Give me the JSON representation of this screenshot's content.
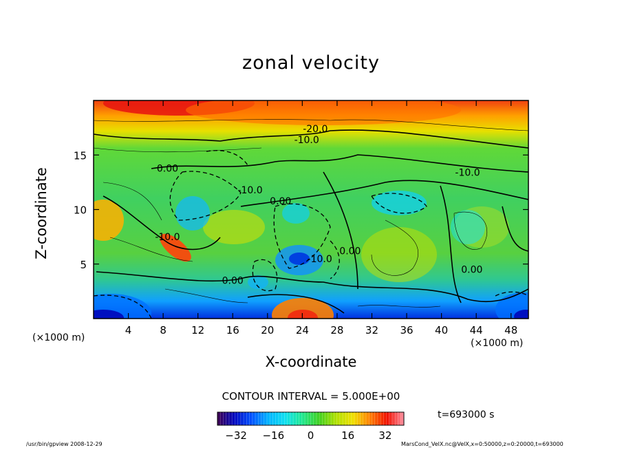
{
  "chart_data": {
    "type": "heatmap",
    "title": "zonal velocity",
    "xlabel": "X-coordinate",
    "ylabel": "Z-coordinate",
    "x_unit": "(×1000 m)",
    "y_unit": "(×1000 m)",
    "xlim": [
      0,
      50
    ],
    "ylim": [
      0,
      20
    ],
    "x_ticks": [
      4,
      8,
      12,
      16,
      20,
      24,
      28,
      32,
      36,
      40,
      44,
      48
    ],
    "y_ticks": [
      5,
      10,
      15
    ],
    "contour_interval_text": "CONTOUR INTERVAL = 5.000E+00",
    "contour_labels": [
      {
        "text": "-20.0",
        "x": 25.5,
        "z": 17.4
      },
      {
        "text": "-10.0",
        "x": 24.5,
        "z": 16.4
      },
      {
        "text": "0.00",
        "x": 8.5,
        "z": 13.8
      },
      {
        "text": "-10.0",
        "x": 43.0,
        "z": 13.4
      },
      {
        "text": "-10.0",
        "x": 18.0,
        "z": 11.8
      },
      {
        "text": "0.00",
        "x": 21.5,
        "z": 10.8
      },
      {
        "text": "-10.0",
        "x": 8.5,
        "z": 7.5
      },
      {
        "text": "-10.0",
        "x": 26.0,
        "z": 5.5
      },
      {
        "text": "0.00",
        "x": 29.5,
        "z": 6.2
      },
      {
        "text": "0.00",
        "x": 43.5,
        "z": 4.5
      },
      {
        "text": "0.00",
        "x": 16.0,
        "z": 3.5
      }
    ],
    "colorbar": {
      "ticks": [
        -32,
        -16,
        0,
        16,
        32
      ],
      "range": [
        -40,
        40
      ],
      "colors": [
        "#400050",
        "#0008c0",
        "#0050ff",
        "#00b4ff",
        "#10e0f0",
        "#20e890",
        "#40d020",
        "#b0e000",
        "#f0e000",
        "#ff8000",
        "#f01000",
        "#ff90a0"
      ]
    },
    "time_label": "t=693000 s"
  },
  "footer": {
    "left": "/usr/bin/gpview   2008-12-29",
    "right": "MarsCond_VelX.nc@VelX,x=0:50000,z=0:20000,t=693000"
  }
}
